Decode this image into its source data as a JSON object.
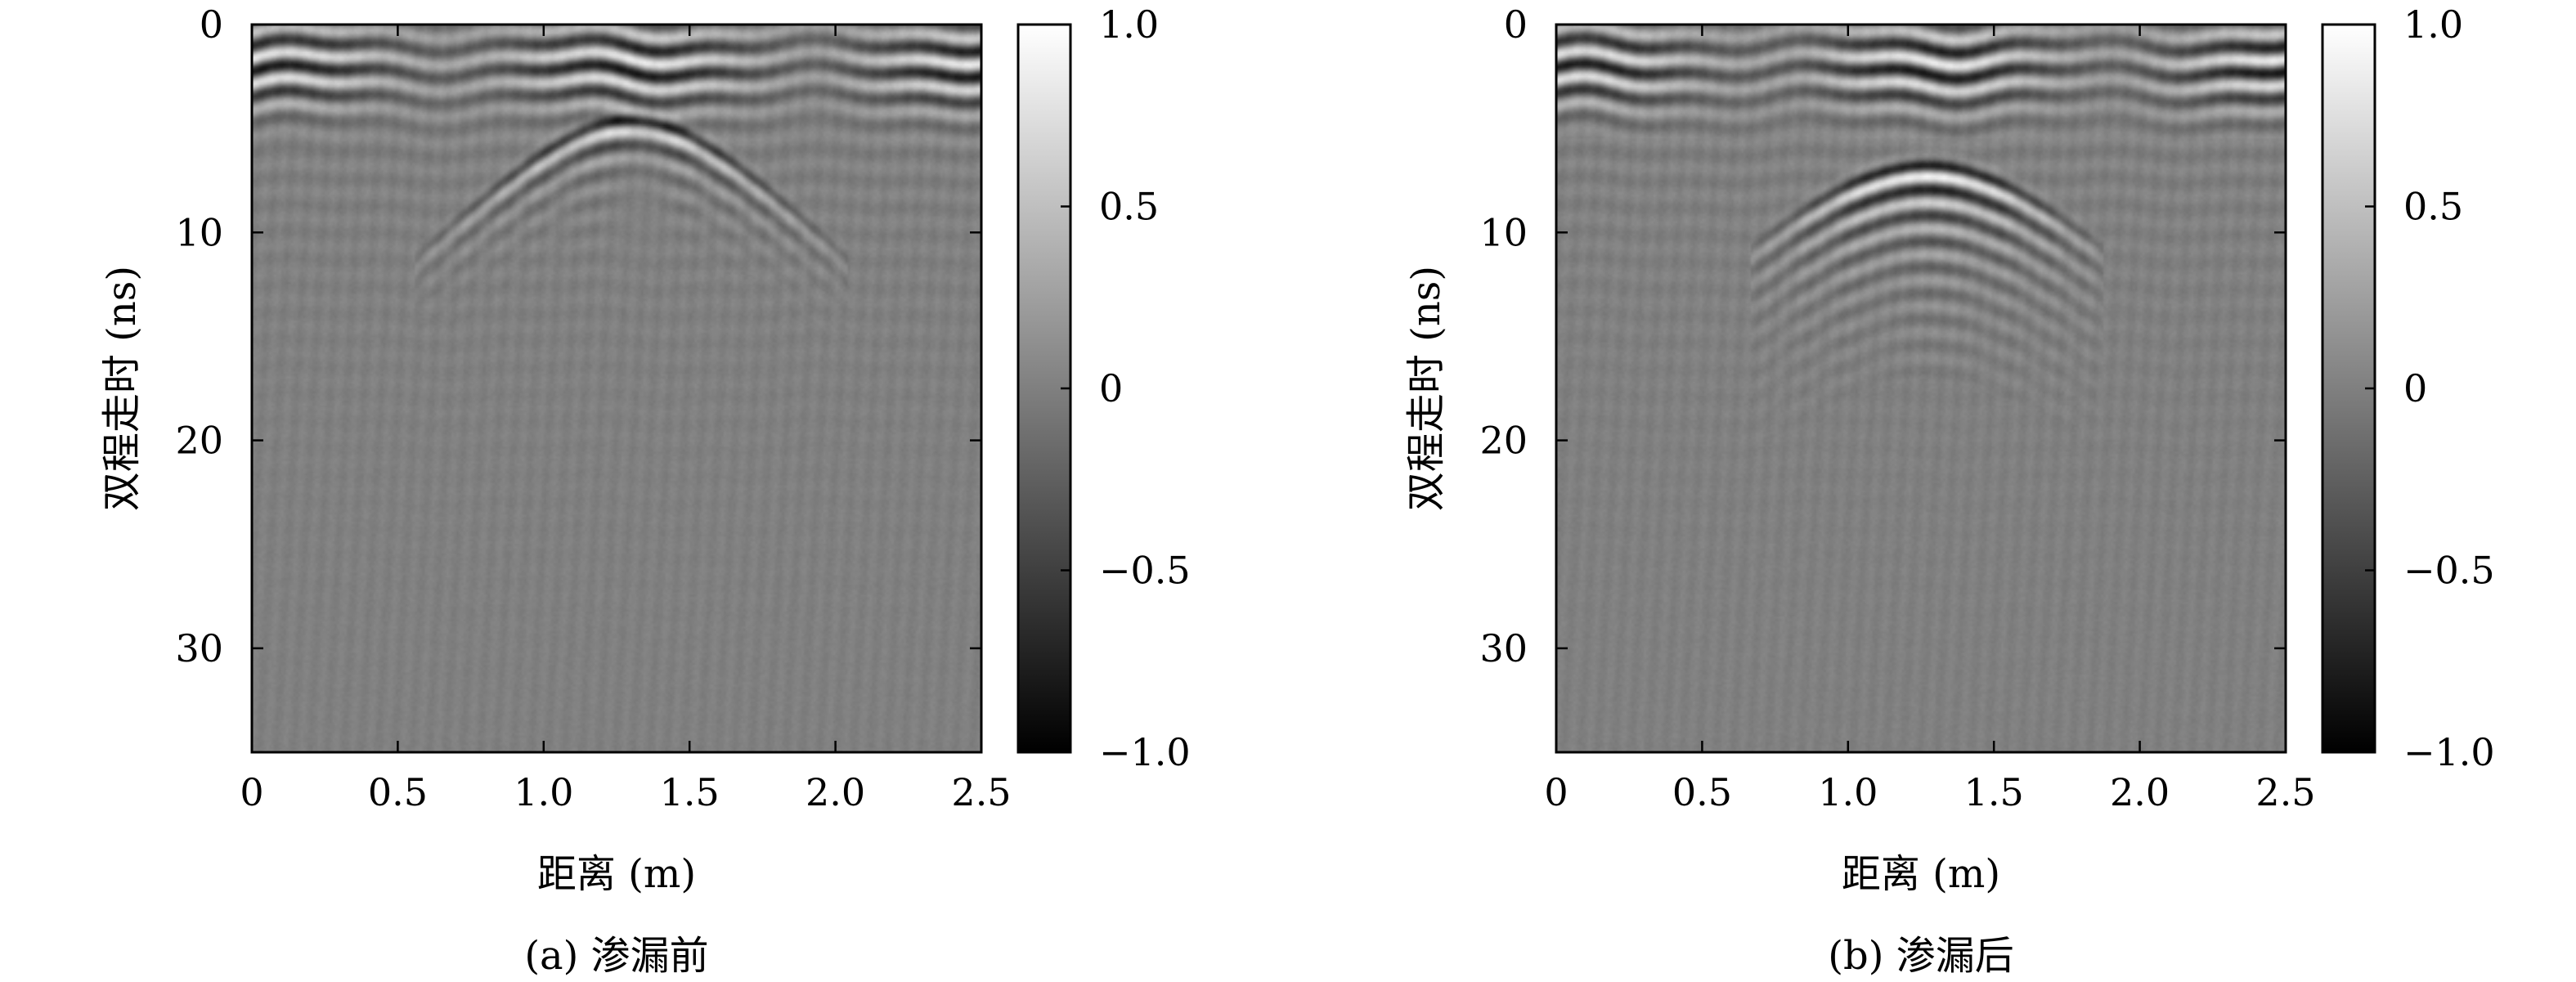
{
  "chart_data": [
    {
      "type": "heatmap",
      "caption": "(a) 渗漏前",
      "xlabel": "距离 (m)",
      "ylabel": "双程走时 (ns)",
      "xlim": [
        0,
        2.5
      ],
      "ylim": [
        0,
        35
      ],
      "y_inverted": true,
      "xticks": [
        0,
        0.5,
        1.0,
        1.5,
        2.0,
        2.5
      ],
      "xtick_labels": [
        "0",
        "0.5",
        "1.0",
        "1.5",
        "2.0",
        "2.5"
      ],
      "yticks": [
        0,
        10,
        20,
        30
      ],
      "ytick_labels": [
        "0",
        "10",
        "20",
        "30"
      ],
      "colorbar": {
        "range": [
          -1.0,
          1.0
        ],
        "ticks": [
          1.0,
          0.5,
          0,
          -0.5,
          -1.0
        ],
        "tick_labels": [
          "1.0",
          "0.5",
          "0",
          "−0.5",
          "−1.0"
        ],
        "colormap": "gray",
        "low_color": "#000000",
        "high_color": "#ffffff"
      },
      "features": {
        "surface_bands_time_ns": [
          0.5,
          4.5
        ],
        "hyperbola_apex_x_m": 1.3,
        "hyperbola_apex_t_ns": 4.8,
        "hyperbola_halfwidth_m": 0.55,
        "hyperbola_strength": 0.8
      }
    },
    {
      "type": "heatmap",
      "caption": "(b) 渗漏后",
      "xlabel": "距离 (m)",
      "ylabel": "双程走时 (ns)",
      "xlim": [
        0,
        2.5
      ],
      "ylim": [
        0,
        35
      ],
      "y_inverted": true,
      "xticks": [
        0,
        0.5,
        1.0,
        1.5,
        2.0,
        2.5
      ],
      "xtick_labels": [
        "0",
        "0.5",
        "1.0",
        "1.5",
        "2.0",
        "2.5"
      ],
      "yticks": [
        0,
        10,
        20,
        30
      ],
      "ytick_labels": [
        "0",
        "10",
        "20",
        "30"
      ],
      "colorbar": {
        "range": [
          -1.0,
          1.0
        ],
        "ticks": [
          1.0,
          0.5,
          0,
          -0.5,
          -1.0
        ],
        "tick_labels": [
          "1.0",
          "0.5",
          "0",
          "−0.5",
          "−1.0"
        ],
        "colormap": "gray",
        "low_color": "#000000",
        "high_color": "#ffffff"
      },
      "features": {
        "surface_bands_time_ns": [
          0.5,
          3.5
        ],
        "hyperbola_apex_x_m": 1.27,
        "hyperbola_apex_t_ns": 7.0,
        "hyperbola_halfwidth_m": 0.45,
        "hyperbola_strength": 1.0
      }
    }
  ]
}
